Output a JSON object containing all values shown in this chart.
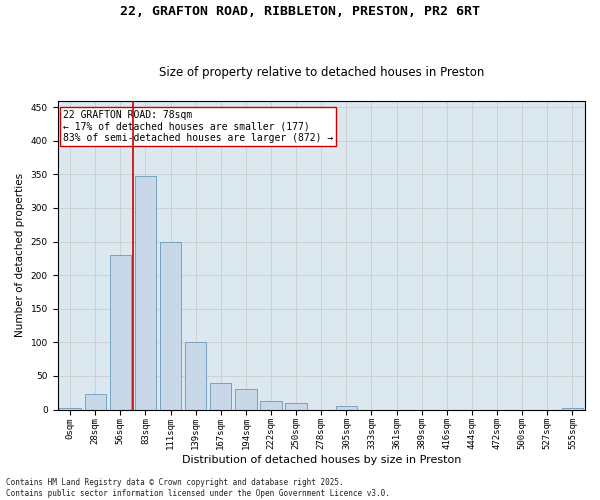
{
  "title_line1": "22, GRAFTON ROAD, RIBBLETON, PRESTON, PR2 6RT",
  "title_line2": "Size of property relative to detached houses in Preston",
  "xlabel": "Distribution of detached houses by size in Preston",
  "ylabel": "Number of detached properties",
  "bar_color": "#c8d8e8",
  "bar_edge_color": "#6699bb",
  "grid_color": "#cccccc",
  "bg_color": "#dce8f0",
  "categories": [
    "0sqm",
    "28sqm",
    "56sqm",
    "83sqm",
    "111sqm",
    "139sqm",
    "167sqm",
    "194sqm",
    "222sqm",
    "250sqm",
    "278sqm",
    "305sqm",
    "333sqm",
    "361sqm",
    "389sqm",
    "416sqm",
    "444sqm",
    "472sqm",
    "500sqm",
    "527sqm",
    "555sqm"
  ],
  "values": [
    2,
    23,
    230,
    348,
    250,
    100,
    40,
    30,
    13,
    10,
    0,
    5,
    0,
    0,
    0,
    0,
    0,
    0,
    0,
    0,
    2
  ],
  "vline_x": 2.5,
  "vline_color": "#cc0000",
  "annotation_text": "22 GRAFTON ROAD: 78sqm\n← 17% of detached houses are smaller (177)\n83% of semi-detached houses are larger (872) →",
  "annotation_edge_color": "#cc0000",
  "ylim": [
    0,
    460
  ],
  "yticks": [
    0,
    50,
    100,
    150,
    200,
    250,
    300,
    350,
    400,
    450
  ],
  "footnote": "Contains HM Land Registry data © Crown copyright and database right 2025.\nContains public sector information licensed under the Open Government Licence v3.0.",
  "title_fontsize": 9.5,
  "subtitle_fontsize": 8.5,
  "axis_label_fontsize": 8,
  "tick_fontsize": 6.5,
  "annotation_fontsize": 7,
  "ylabel_fontsize": 7.5
}
